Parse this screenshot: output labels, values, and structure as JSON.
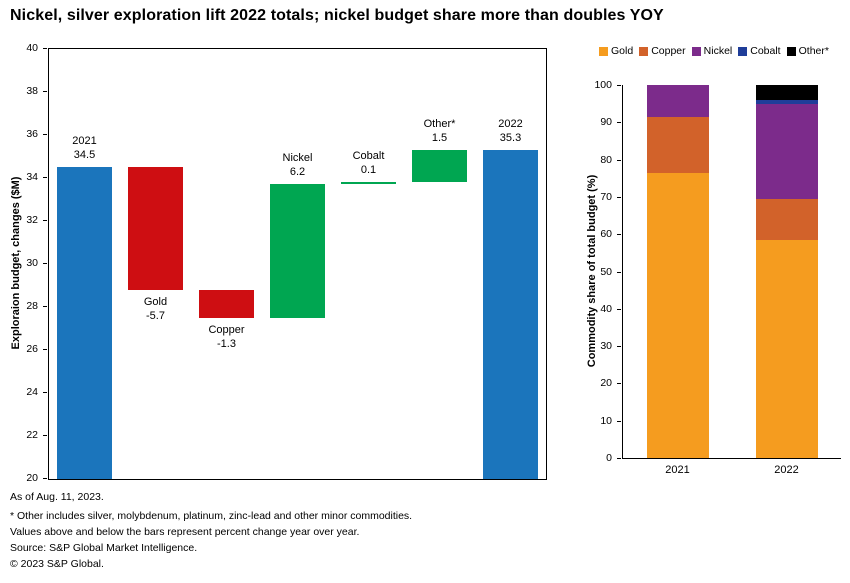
{
  "title": "Nickel, silver exploration lift 2022 totals; nickel budget share more than doubles YOY",
  "colors": {
    "blue": "#1B75BC",
    "red": "#CE0E12",
    "green": "#00A651"
  },
  "chart_data": [
    {
      "id": "waterfall",
      "type": "bar",
      "subtype": "waterfall",
      "ylabel": "Exploraion budget, changes ($M)",
      "ylim": [
        20,
        40
      ],
      "ytick_step": 2,
      "grid": false,
      "bars": [
        {
          "label": "2021",
          "value_label": "34.5",
          "start": 20,
          "end": 34.5,
          "color_key": "blue",
          "label_pos": "above"
        },
        {
          "label": "Gold",
          "value_label": "-5.7",
          "start": 34.5,
          "end": 28.8,
          "color_key": "red",
          "label_pos": "below"
        },
        {
          "label": "Copper",
          "value_label": "-1.3",
          "start": 28.8,
          "end": 27.5,
          "color_key": "red",
          "label_pos": "below"
        },
        {
          "label": "Nickel",
          "value_label": "6.2",
          "start": 27.5,
          "end": 33.7,
          "color_key": "green",
          "label_pos": "above"
        },
        {
          "label": "Cobalt",
          "value_label": "0.1",
          "start": 33.7,
          "end": 33.8,
          "color_key": "green",
          "label_pos": "above"
        },
        {
          "label": "Other*",
          "value_label": "1.5",
          "start": 33.8,
          "end": 35.3,
          "color_key": "green",
          "label_pos": "above"
        },
        {
          "label": "2022",
          "value_label": "35.3",
          "start": 20,
          "end": 35.3,
          "color_key": "blue",
          "label_pos": "above"
        }
      ]
    },
    {
      "id": "stacked",
      "type": "bar",
      "subtype": "stacked-100",
      "ylabel": "Commodity share of total budget (%)",
      "ylim": [
        0,
        100
      ],
      "ytick_step": 10,
      "grid": false,
      "legend_position": "top",
      "categories": [
        "2021",
        "2022"
      ],
      "series": [
        {
          "name": "Gold",
          "color": "#F59C1F",
          "values": [
            76.5,
            58.5
          ]
        },
        {
          "name": "Copper",
          "color": "#D2622A",
          "values": [
            15,
            11
          ]
        },
        {
          "name": "Nickel",
          "color": "#7C2B8B",
          "values": [
            8.5,
            25.5
          ]
        },
        {
          "name": "Cobalt",
          "color": "#1F3D99",
          "values": [
            0,
            1
          ]
        },
        {
          "name": "Other*",
          "color": "#000000",
          "values": [
            0,
            4
          ]
        }
      ]
    }
  ],
  "footnotes": [
    "As of Aug. 11, 2023.",
    "* Other includes silver, molybdenum, platinum, zinc-lead and other minor commodities.",
    "Values above and below the bars represent percent change year over year.",
    "Source: S&P Global Market Intelligence.",
    "© 2023 S&P Global."
  ]
}
